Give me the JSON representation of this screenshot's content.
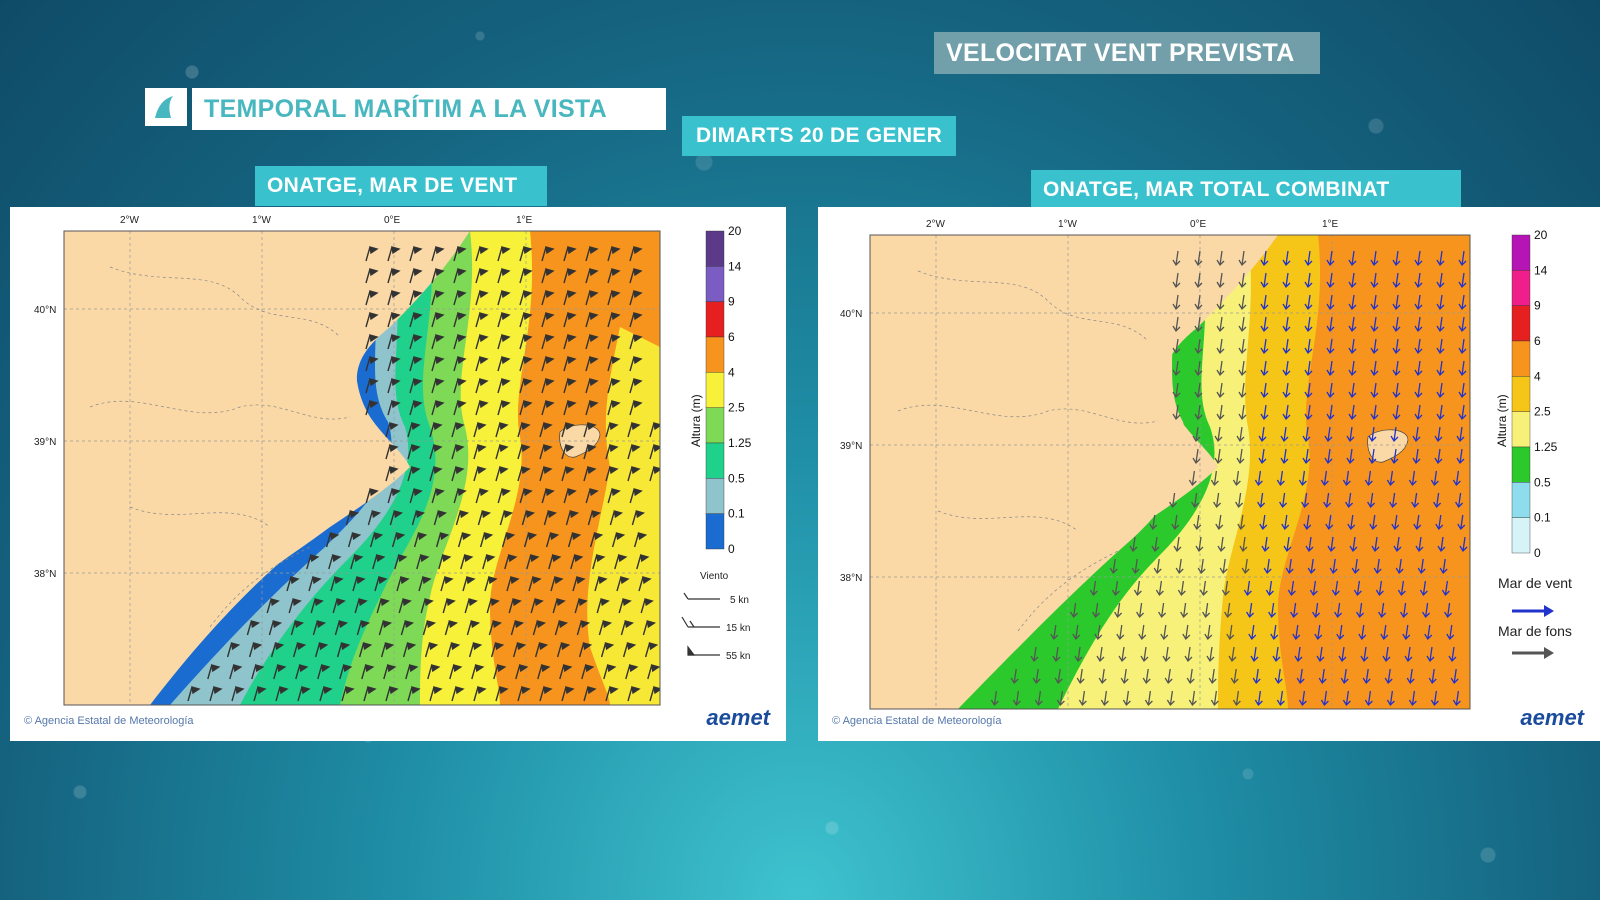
{
  "header": {
    "title": "TEMPORAL MARÍTIM A LA VISTA",
    "date": "DIMARTS 20 DE GENER",
    "section": "VELOCITAT VENT PREVISTA"
  },
  "left_map": {
    "tag": "ONATGE, MAR DE VENT",
    "lon_ticks": [
      "2°W",
      "1°W",
      "0°E",
      "1°E"
    ],
    "lat_ticks": [
      "40°N",
      "39°N",
      "38°N"
    ],
    "colorbar_title": "Altura (m)",
    "colorbar_ticks": [
      "20",
      "14",
      "9",
      "6",
      "4",
      "2.5",
      "1.25",
      "0.5",
      "0.1",
      "0"
    ],
    "colorbar_colors": [
      "#5b3a8a",
      "#7a5cc2",
      "#e62020",
      "#f7941d",
      "#f7f13a",
      "#7ed957",
      "#1fd18a",
      "#8fc4cc",
      "#1b6cd1"
    ],
    "wind_title": "Viento",
    "wind_labels": [
      "5 kn",
      "15 kn",
      "55 kn"
    ],
    "credit": "Agencia Estatal de Meteorología",
    "logo": "aemet"
  },
  "right_map": {
    "tag": "ONATGE, MAR TOTAL COMBINAT",
    "lon_ticks": [
      "2°W",
      "1°W",
      "0°E",
      "1°E"
    ],
    "lat_ticks": [
      "40°N",
      "39°N",
      "38°N"
    ],
    "colorbar_title": "Altura (m)",
    "colorbar_ticks": [
      "20",
      "14",
      "9",
      "6",
      "4",
      "2.5",
      "1.25",
      "0.5",
      "0.1",
      "0"
    ],
    "colorbar_colors": [
      "#b515b5",
      "#ee1f8a",
      "#e62020",
      "#f7941d",
      "#f5c518",
      "#f7f17a",
      "#2cc92c",
      "#8fdcec",
      "#d6f3f7"
    ],
    "legend_wind": "Mar de vent",
    "legend_swell": "Mar de fons",
    "credit": "Agencia Estatal de Meteorología",
    "logo": "aemet"
  }
}
